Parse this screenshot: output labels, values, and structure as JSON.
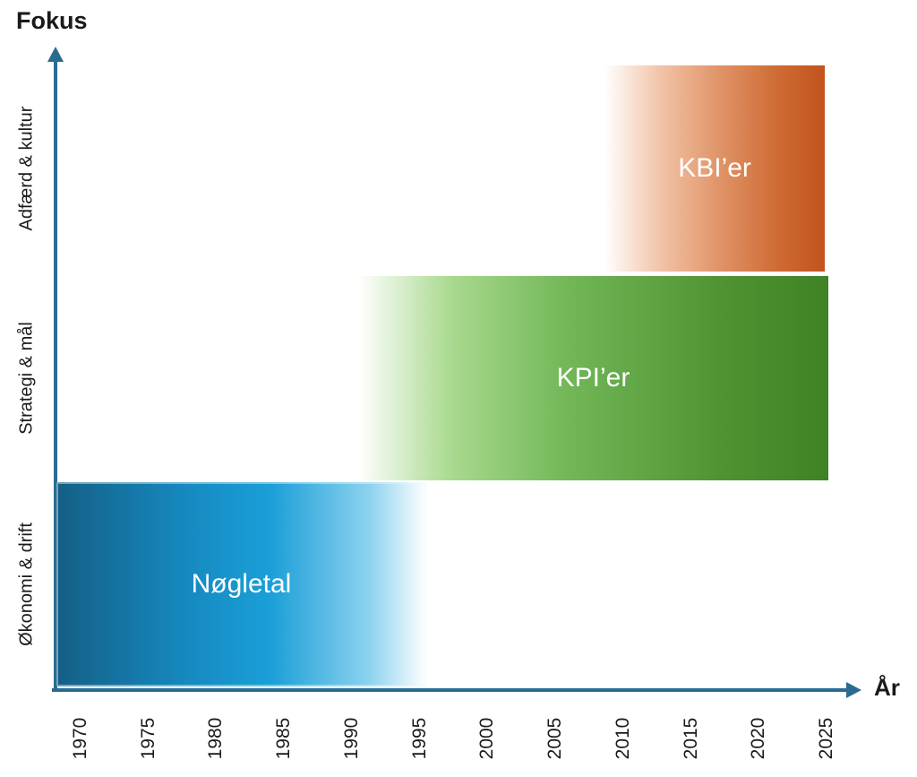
{
  "y_axis": {
    "title": "Fokus"
  },
  "x_axis": {
    "title": "År"
  },
  "colors": {
    "axis": "#2a6b90",
    "text": "#1a1a1a",
    "bar_label": "#ffffff"
  },
  "chart_data": {
    "type": "bar",
    "subtype": "horizontal-timeline-bars",
    "title": "",
    "xlabel": "År",
    "ylabel": "Fokus",
    "grid": false,
    "legend": false,
    "x_ticks": [
      1970,
      1975,
      1980,
      1985,
      1990,
      1995,
      2000,
      2005,
      2010,
      2015,
      2020,
      2025
    ],
    "x_range": [
      1968,
      2027
    ],
    "categories": [
      "Økonomi & drift",
      "Strategi & mål",
      "Adfærd & kultur"
    ],
    "series": [
      {
        "name": "Nøgletal",
        "category": "Økonomi & drift",
        "category_index": 0,
        "start_year": 1968.2,
        "end_year": 1995.5,
        "fade_direction": "right",
        "label_color": "#ffffff",
        "gradient": [
          [
            "#145f85",
            "0%"
          ],
          [
            "#1689c0",
            "35%"
          ],
          [
            "#1b9fd8",
            "58%"
          ],
          [
            "#8ed3ef",
            "85%"
          ],
          [
            "#ffffff",
            "100%"
          ]
        ]
      },
      {
        "name": "KPI’er",
        "category": "Strategi & mål",
        "category_index": 1,
        "start_year": 1990.5,
        "end_year": 2025.1,
        "fade_direction": "left",
        "label_color": "#ffffff",
        "gradient": [
          [
            "#ffffff",
            "0%"
          ],
          [
            "#a8d98e",
            "20%"
          ],
          [
            "#71b657",
            "45%"
          ],
          [
            "#4f9231",
            "78%"
          ],
          [
            "#3e8226",
            "100%"
          ]
        ]
      },
      {
        "name": "KBI’er",
        "category": "Adfærd & kultur",
        "category_index": 2,
        "start_year": 2008.6,
        "end_year": 2024.9,
        "fade_direction": "left",
        "label_color": "#ffffff",
        "gradient": [
          [
            "#ffffff",
            "0%"
          ],
          [
            "#f2c4a8",
            "25%"
          ],
          [
            "#e09468",
            "52%"
          ],
          [
            "#cf6c35",
            "78%"
          ],
          [
            "#c2531d",
            "100%"
          ]
        ]
      }
    ]
  }
}
